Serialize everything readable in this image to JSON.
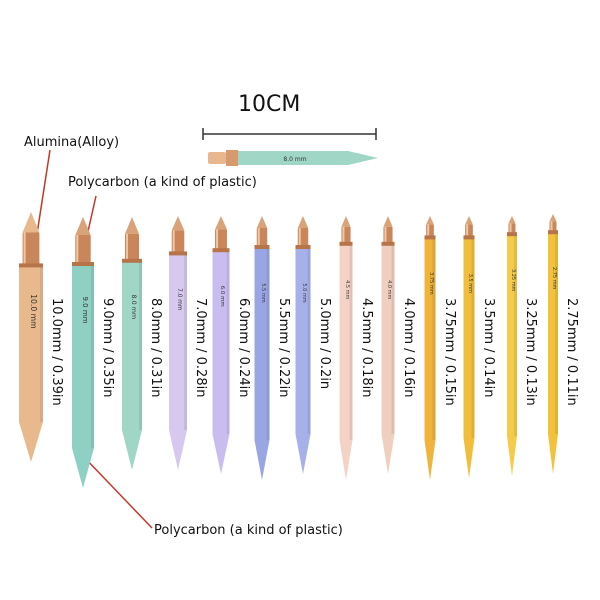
{
  "scale": {
    "label": "10CM"
  },
  "labels": {
    "alloy": "Alumina(Alloy)",
    "polycarbon_top": "Polycarbon (a kind of plastic)",
    "polycarbon_bottom": "Polycarbon (a kind of plastic)"
  },
  "sample_needle": {
    "marking": "8.0 mm",
    "color": "#9fd6c6"
  },
  "needles": [
    {
      "size": "10.0mm / 0.39in",
      "marking": "10.0 mm",
      "color": "#e9b98e"
    },
    {
      "size": "9.0mm / 0.35in",
      "marking": "9.0 mm",
      "color": "#8fd0c4"
    },
    {
      "size": "8.0mm / 0.31in",
      "marking": "8.0 mm",
      "color": "#9fd6c6"
    },
    {
      "size": "7.0mm / 0.28in",
      "marking": "7.0 mm",
      "color": "#d7c8ef"
    },
    {
      "size": "6.0mm / 0.24in",
      "marking": "6.0 mm",
      "color": "#c9bdf0"
    },
    {
      "size": "5.5mm / 0.22in",
      "marking": "5.5 mm",
      "color": "#9aa6e3"
    },
    {
      "size": "5.0mm / 0.2in",
      "marking": "5.0 mm",
      "color": "#a6b1ea"
    },
    {
      "size": "4.5mm / 0.18in",
      "marking": "4.5 mm",
      "color": "#f4d2c6"
    },
    {
      "size": "4.0mm / 0.16in",
      "marking": "4.0 mm",
      "color": "#f1cfc0"
    },
    {
      "size": "3.75mm / 0.15in",
      "marking": "3.75 mm",
      "color": "#f0b43a"
    },
    {
      "size": "3.5mm / 0.14in",
      "marking": "3.5 mm",
      "color": "#f2bd3a"
    },
    {
      "size": "3.25mm / 0.13in",
      "marking": "3.25 mm",
      "color": "#f5cc4a"
    },
    {
      "size": "2.75mm / 0.11in",
      "marking": "2.75 mm",
      "color": "#f2c23d"
    }
  ]
}
